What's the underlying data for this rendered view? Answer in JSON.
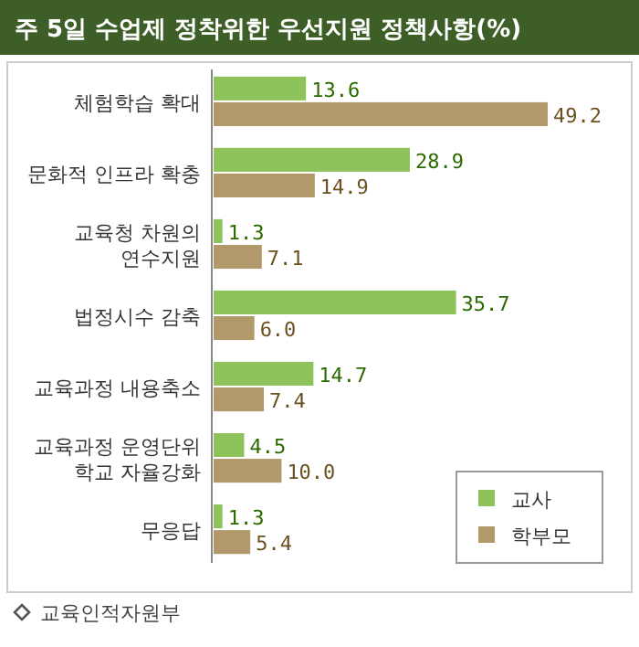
{
  "chart_data": {
    "type": "bar",
    "orientation": "horizontal",
    "title": "주 5일 수업제 정착위한 우선지원 정책사항(%)",
    "categories": [
      "체험학습 확대",
      "문화적 인프라 확충",
      "교육청 차원의\n연수지원",
      "법정시수 감축",
      "교육과정 내용축소",
      "교육과정 운영단위\n학교 자율강화",
      "무응답"
    ],
    "series": [
      {
        "name": "교사",
        "color": "#8dc35a",
        "values": [
          13.6,
          28.9,
          1.3,
          35.7,
          14.7,
          4.5,
          1.3
        ],
        "value_labels": [
          "13.6",
          "28.9",
          "1.3",
          "35.7",
          "14.7",
          "4.5",
          "1.3"
        ]
      },
      {
        "name": "학부모",
        "color": "#b1996b",
        "values": [
          49.2,
          14.9,
          7.1,
          6.0,
          7.4,
          10.0,
          5.4
        ],
        "value_labels": [
          "49.2",
          "14.9",
          "7.1",
          "6.0",
          "7.4",
          "10.0",
          "5.4"
        ]
      }
    ],
    "legend": "bottom right",
    "annotations": [
      "교육인적자원부"
    ]
  }
}
